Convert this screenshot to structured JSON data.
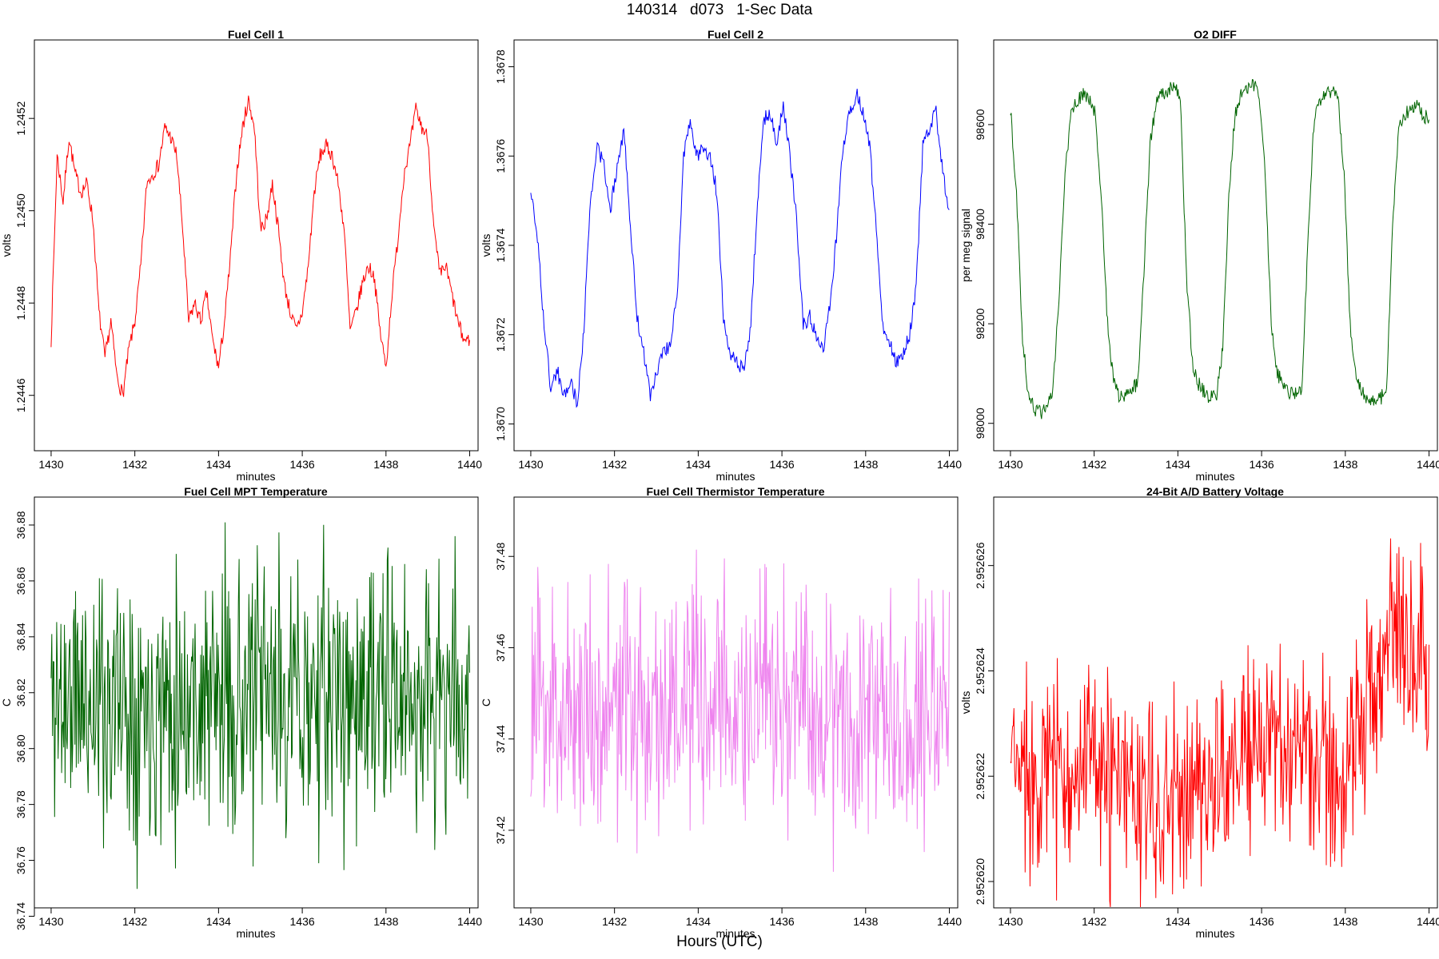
{
  "figure": {
    "title": "140314   d073   1-Sec Data",
    "xlabel_overall": "Hours (UTC)"
  },
  "chart_data": [
    {
      "type": "line",
      "title": "Fuel Cell 1",
      "xlabel": "minutes",
      "ylabel": "volts",
      "xlim": [
        1429.6,
        1440.2
      ],
      "ylim": [
        1.24448,
        1.24537
      ],
      "xticks": [
        "1430",
        "1432",
        "1434",
        "1436",
        "1438",
        "1440"
      ],
      "yticks": [
        "1.2446",
        "1.2448",
        "1.2450",
        "1.2452"
      ],
      "color": "#ff0000",
      "series": [
        {
          "name": "Fuel Cell 1",
          "x_start": 1430,
          "x_end": 1440,
          "values": [
            1.24472,
            1.24512,
            1.24502,
            1.24516,
            1.24508,
            1.24504,
            1.24506,
            1.24498,
            1.24478,
            1.24468,
            1.24476,
            1.24464,
            1.2446,
            1.2447,
            1.24476,
            1.24488,
            1.24506,
            1.24508,
            1.2451,
            1.24518,
            1.24516,
            1.24512,
            1.24496,
            1.24476,
            1.2448,
            1.24476,
            1.24482,
            1.24472,
            1.24466,
            1.24476,
            1.2449,
            1.24508,
            1.24518,
            1.24524,
            1.24518,
            1.24496,
            1.24498,
            1.24506,
            1.24496,
            1.24484,
            1.24478,
            1.24474,
            1.24478,
            1.24488,
            1.24504,
            1.24512,
            1.24514,
            1.24512,
            1.24506,
            1.24496,
            1.24474,
            1.24478,
            1.24484,
            1.24488,
            1.24486,
            1.24474,
            1.24466,
            1.24482,
            1.24494,
            1.24508,
            1.24514,
            1.24522,
            1.24518,
            1.24516,
            1.24496,
            1.24486,
            1.24488,
            1.24482,
            1.24476,
            1.24472,
            1.24472
          ]
        }
      ]
    },
    {
      "type": "line",
      "title": "Fuel Cell 2",
      "xlabel": "minutes",
      "ylabel": "volts",
      "xlim": [
        1429.6,
        1440.2
      ],
      "ylim": [
        1.36694,
        1.36786
      ],
      "xticks": [
        "1430",
        "1432",
        "1434",
        "1436",
        "1438",
        "1440"
      ],
      "yticks": [
        "1.3670",
        "1.3672",
        "1.3674",
        "1.3676",
        "1.3678"
      ],
      "color": "#0000ff",
      "series": [
        {
          "name": "Fuel Cell 2",
          "x_start": 1430,
          "x_end": 1440,
          "values": [
            1.36752,
            1.36742,
            1.36722,
            1.36708,
            1.36712,
            1.36706,
            1.3671,
            1.36704,
            1.36722,
            1.3675,
            1.36762,
            1.36758,
            1.36748,
            1.36758,
            1.36766,
            1.36744,
            1.36724,
            1.36716,
            1.36706,
            1.36712,
            1.36716,
            1.36718,
            1.36728,
            1.3676,
            1.36768,
            1.3676,
            1.36762,
            1.3676,
            1.36752,
            1.36724,
            1.36716,
            1.36714,
            1.36712,
            1.3672,
            1.36746,
            1.36768,
            1.3677,
            1.36762,
            1.36772,
            1.3676,
            1.36746,
            1.36722,
            1.36724,
            1.3672,
            1.36716,
            1.36726,
            1.36742,
            1.36762,
            1.3677,
            1.36774,
            1.3677,
            1.36762,
            1.36744,
            1.36722,
            1.36718,
            1.36714,
            1.36716,
            1.3672,
            1.3673,
            1.36762,
            1.36766,
            1.3677,
            1.36756,
            1.36748
          ]
        }
      ]
    },
    {
      "type": "line",
      "title": "O2 DIFF",
      "xlabel": "minutes",
      "ylabel": "per meg signal",
      "xlim": [
        1429.6,
        1440.2
      ],
      "ylim": [
        97945,
        98770
      ],
      "xticks": [
        "1430",
        "1432",
        "1434",
        "1436",
        "1438",
        "1440"
      ],
      "yticks": [
        "98000",
        "98200",
        "98400",
        "98600"
      ],
      "color": "#006400",
      "series": [
        {
          "name": "O2 DIFF",
          "x_start": 1430,
          "x_end": 1440,
          "values": [
            98630,
            98460,
            98170,
            98050,
            98030,
            98020,
            98030,
            98060,
            98250,
            98500,
            98620,
            98650,
            98660,
            98650,
            98620,
            98450,
            98200,
            98080,
            98050,
            98060,
            98070,
            98080,
            98300,
            98560,
            98640,
            98660,
            98670,
            98680,
            98650,
            98300,
            98120,
            98080,
            98060,
            98050,
            98060,
            98150,
            98450,
            98620,
            98660,
            98670,
            98680,
            98660,
            98500,
            98200,
            98100,
            98080,
            98060,
            98060,
            98060,
            98350,
            98600,
            98650,
            98660,
            98670,
            98650,
            98500,
            98200,
            98090,
            98060,
            98050,
            98040,
            98050,
            98070,
            98400,
            98590,
            98620,
            98630,
            98640,
            98620,
            98610
          ]
        }
      ]
    },
    {
      "type": "line",
      "title": "Fuel Cell MPT Temperature",
      "xlabel": "minutes",
      "ylabel": "C",
      "xlim": [
        1429.6,
        1440.2
      ],
      "ylim": [
        36.743,
        36.89
      ],
      "xticks": [
        "1430",
        "1432",
        "1434",
        "1436",
        "1438",
        "1440"
      ],
      "yticks": [
        "36.74",
        "36.76",
        "36.78",
        "36.80",
        "36.82",
        "36.84",
        "36.86",
        "36.88"
      ],
      "color": "#006400",
      "noise": {
        "center": 36.818,
        "amplitude": 0.045,
        "points": 600,
        "seed": 11
      },
      "series": [
        {
          "name": "Fuel Cell MPT Temperature",
          "x_start": 1430,
          "x_end": 1440
        }
      ]
    },
    {
      "type": "line",
      "title": "Fuel Cell Thermistor Temperature",
      "xlabel": "minutes",
      "ylabel": "C",
      "xlim": [
        1429.6,
        1440.2
      ],
      "ylim": [
        37.403,
        37.493
      ],
      "xticks": [
        "1430",
        "1432",
        "1434",
        "1436",
        "1438",
        "1440"
      ],
      "yticks": [
        "37.42",
        "37.44",
        "37.46",
        "37.48"
      ],
      "color": "#ee82ee",
      "noise": {
        "center": 37.447,
        "amplitude": 0.026,
        "points": 600,
        "seed": 23
      },
      "series": [
        {
          "name": "Fuel Cell Thermistor Temperature",
          "x_start": 1430,
          "x_end": 1440
        }
      ]
    },
    {
      "type": "line",
      "title": "24-Bit A/D Battery Voltage",
      "xlabel": "minutes",
      "ylabel": "volts",
      "xlim": [
        1429.6,
        1440.2
      ],
      "ylim": [
        2.9526195,
        2.9526273
      ],
      "xticks": [
        "1430",
        "1432",
        "1434",
        "1436",
        "1438",
        "1440"
      ],
      "yticks": [
        "2.952620",
        "2.952622",
        "2.952624",
        "2.952626"
      ],
      "color": "#ff0000",
      "noise": {
        "center": 2.9526222,
        "amplitude": 1.8e-06,
        "points": 600,
        "seed": 37
      },
      "trend": {
        "x": [
          1430,
          1432,
          1433.5,
          1435,
          1436.5,
          1438,
          1439,
          1440
        ],
        "y": [
          2.9526222,
          2.9526221,
          2.9526213,
          2.9526221,
          2.9526227,
          2.9526219,
          2.9526248,
          2.9526244
        ]
      },
      "series": [
        {
          "name": "24-Bit A/D Battery Voltage",
          "x_start": 1430,
          "x_end": 1440
        }
      ]
    }
  ]
}
